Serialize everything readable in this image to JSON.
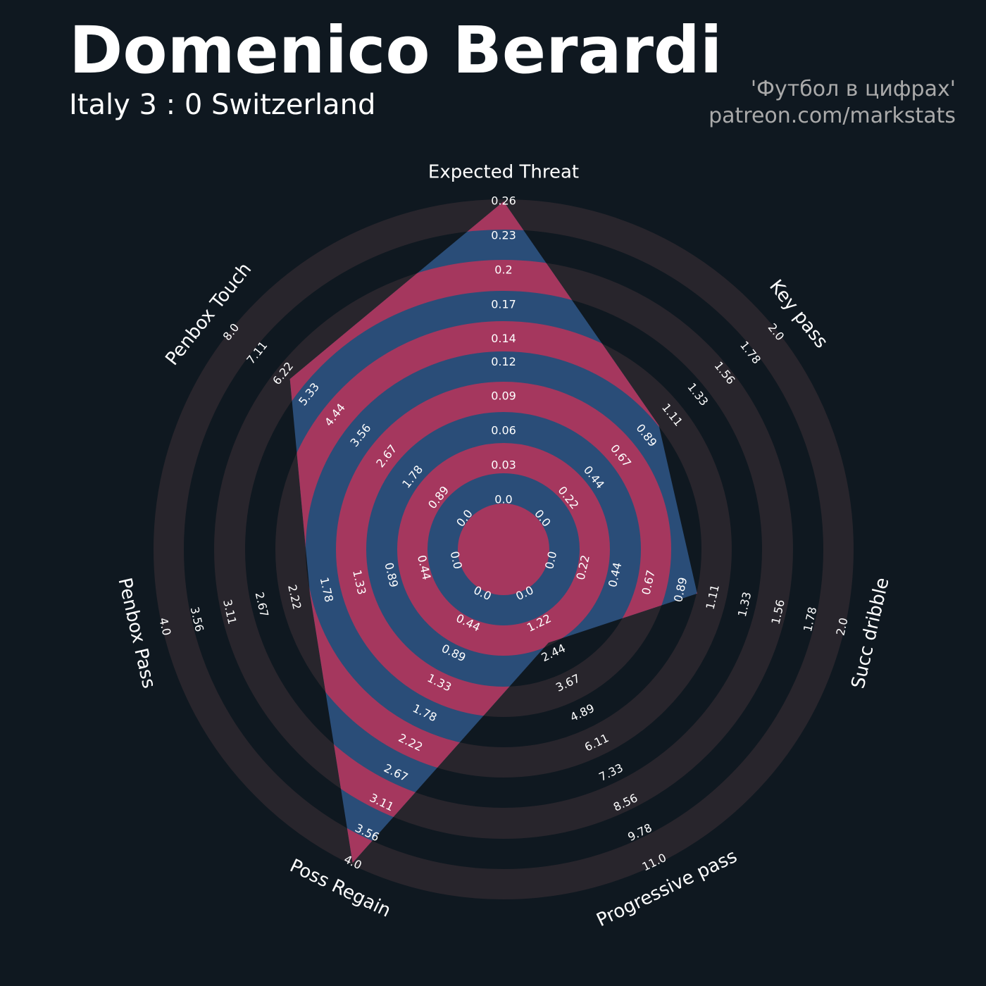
{
  "chart_data": {
    "type": "radar",
    "title": "Domenico Berardi",
    "subtitle": "Italy 3 : 0 Switzerland",
    "credits": [
      "'Футбол в цифрах'",
      "patreon.com/markstats"
    ],
    "categories": [
      "Expected Threat",
      "Key pass",
      "Succ dribble",
      "Progressive pass",
      "Poss Regain",
      "Penbox Pass",
      "Penbox Touch"
    ],
    "values": [
      0.26,
      1.0,
      1.0,
      2.0,
      4.0,
      2.0,
      6.0
    ],
    "ranges": [
      [
        0,
        0.26
      ],
      [
        0,
        2
      ],
      [
        0,
        2
      ],
      [
        0,
        11
      ],
      [
        0,
        4
      ],
      [
        0,
        4
      ],
      [
        0,
        8
      ]
    ],
    "ticks": [
      [
        {
          "value": 0,
          "label": "0.0"
        },
        0.03,
        0.06,
        0.09,
        0.12,
        0.14,
        0.17,
        0.2,
        0.23,
        0.26
      ],
      [
        {
          "value": 0,
          "label": "0.0"
        },
        0.22,
        0.44,
        0.67,
        0.89,
        1.11,
        1.33,
        1.56,
        1.78,
        {
          "value": 2,
          "label": "2.0"
        }
      ],
      [
        {
          "value": 0,
          "label": "0.0"
        },
        0.22,
        0.44,
        0.67,
        0.89,
        1.11,
        1.33,
        1.56,
        1.78,
        {
          "value": 2,
          "label": "2.0"
        }
      ],
      [
        {
          "value": 0,
          "label": "0.0"
        },
        1.22,
        2.44,
        3.67,
        4.89,
        6.11,
        7.33,
        8.56,
        9.78,
        {
          "value": 11,
          "label": "11.0"
        }
      ],
      [
        {
          "value": 0,
          "label": "0.0"
        },
        0.44,
        0.89,
        1.33,
        1.78,
        2.22,
        2.67,
        3.11,
        3.56,
        {
          "value": 4,
          "label": "4.0"
        }
      ],
      [
        {
          "value": 0,
          "label": "0.0"
        },
        0.44,
        0.89,
        1.33,
        1.78,
        2.22,
        2.67,
        3.11,
        3.56,
        {
          "value": 4,
          "label": "4.0"
        }
      ],
      [
        {
          "value": 0,
          "label": "0.0"
        },
        0.89,
        1.78,
        2.67,
        3.56,
        4.44,
        5.33,
        6.22,
        7.11,
        {
          "value": 8,
          "label": "8.0"
        }
      ]
    ],
    "color": "#2a4d78",
    "ring_color": "#28252c",
    "highlight_color": "#a5375e"
  }
}
